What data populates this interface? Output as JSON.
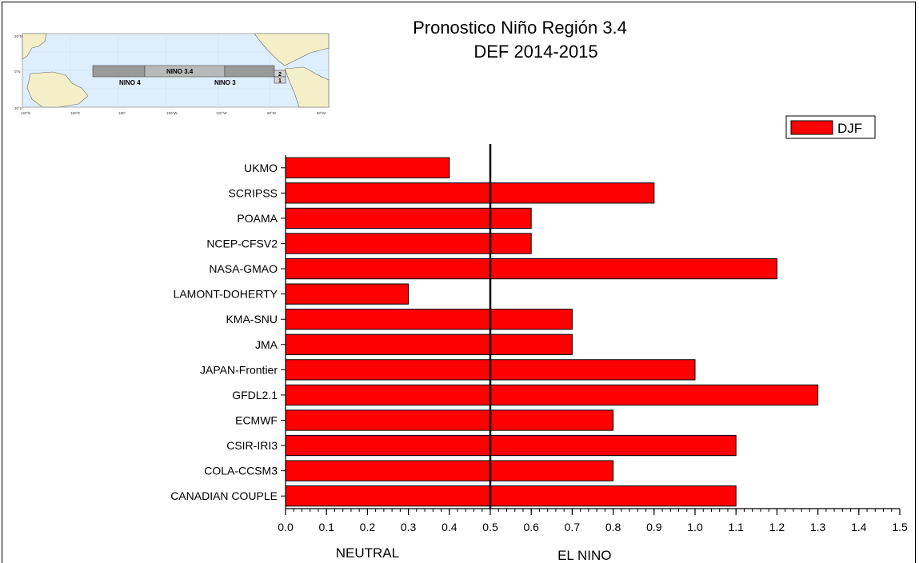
{
  "chart_data": {
    "type": "bar",
    "orientation": "horizontal",
    "title": "Pronostico Niño Región 3.4",
    "subtitle": "DEF 2014-2015",
    "categories": [
      "UKMO",
      "SCRIPSS",
      "POAMA",
      "NCEP-CFSV2",
      "NASA-GMAO",
      "LAMONT-DOHERTY",
      "KMA-SNU",
      "JMA",
      "JAPAN-Frontier",
      "GFDL2.1",
      "ECMWF",
      "CSIR-IRI3",
      "COLA-CCSM3",
      "CANADIAN COUPLE"
    ],
    "series": [
      {
        "name": "DJF",
        "color": "#ff0000",
        "values": [
          0.4,
          0.9,
          0.6,
          0.6,
          1.2,
          0.3,
          0.7,
          0.7,
          1.0,
          1.3,
          0.8,
          1.1,
          0.8,
          1.1
        ]
      }
    ],
    "xlim": [
      0.0,
      1.5
    ],
    "x_ticks": [
      "0.0",
      "0.1",
      "0.2",
      "0.3",
      "0.4",
      "0.5",
      "0.6",
      "0.7",
      "0.8",
      "0.9",
      "1.0",
      "1.1",
      "1.2",
      "1.3",
      "1.4",
      "1.5"
    ],
    "threshold": 0.5,
    "region_labels": [
      "NEUTRAL",
      "EL NINO"
    ],
    "legend_position": "top-right",
    "grid": false
  },
  "inset_map": {
    "region_labels": [
      "NINO 3.4",
      "NINO 4",
      "NINO 3",
      "2",
      "1"
    ],
    "lat_labels": [
      "30°N",
      "0°N",
      "30°S"
    ],
    "lon_labels": [
      "120°E",
      "150°E",
      "180°",
      "150°W",
      "120°W",
      "90°W",
      "60°W"
    ]
  }
}
